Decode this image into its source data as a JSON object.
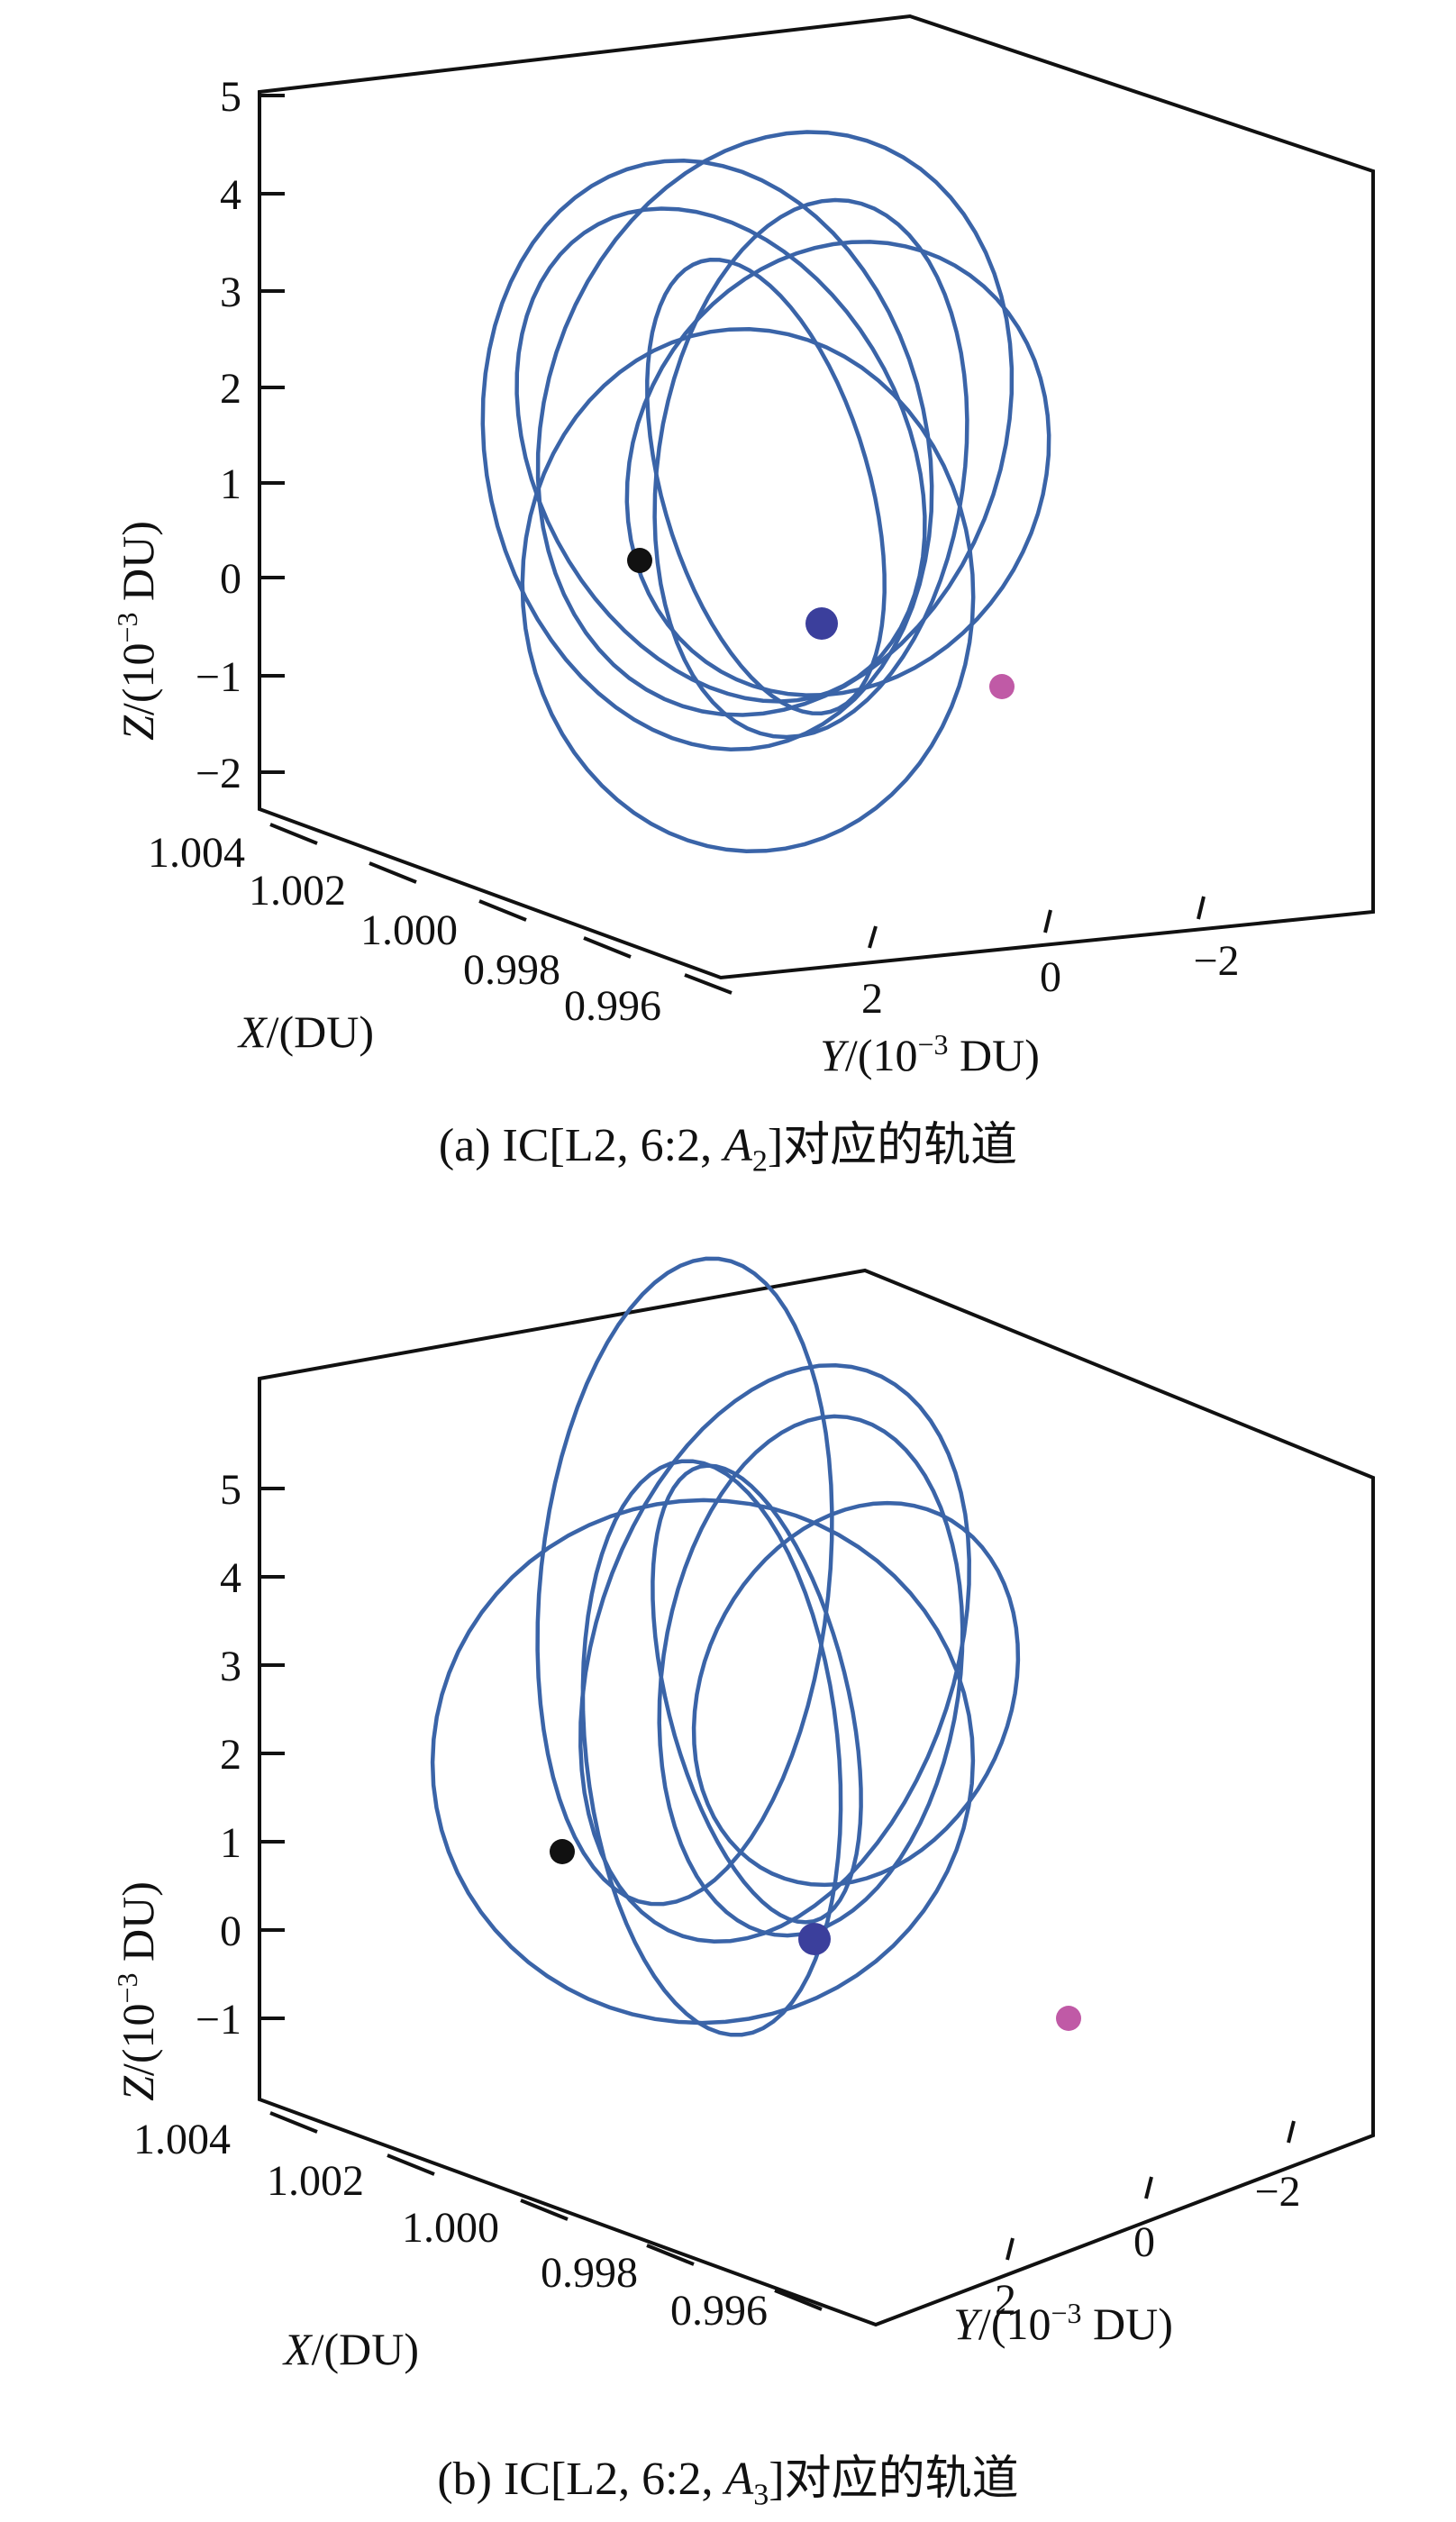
{
  "chart_data": [
    {
      "type": "line3d",
      "caption": {
        "prefix": "(a) IC[L2, 6:2, ",
        "var": "A",
        "sub": "2",
        "suffix": "]对应的轨道"
      },
      "zlabel": {
        "var": "Z",
        "rest": "/(10",
        "exp": "−3",
        "tail": " DU)"
      },
      "xlabel": {
        "var": "X",
        "rest": "/(DU)"
      },
      "ylabel": {
        "var": "Y",
        "rest": "/(10",
        "exp": "−3",
        "tail": " DU)"
      },
      "z_ticks": [
        "5",
        "4",
        "3",
        "2",
        "1",
        "0",
        "−1",
        "−2"
      ],
      "x_ticks": [
        "1.004",
        "1.002",
        "1.000",
        "0.998",
        "0.996"
      ],
      "y_ticks": [
        "2",
        "0",
        "−2"
      ],
      "series_color": "#3a64a8",
      "markers": [
        {
          "name": "start",
          "color": "#111111"
        },
        {
          "name": "center",
          "color": "#3b3f9c"
        },
        {
          "name": "offset",
          "color": "#c05aa6"
        }
      ]
    },
    {
      "type": "line3d",
      "caption": {
        "prefix": "(b) IC[L2, 6:2, ",
        "var": "A",
        "sub": "3",
        "suffix": "]对应的轨道"
      },
      "zlabel": {
        "var": "Z",
        "rest": "/(10",
        "exp": "−3",
        "tail": " DU)"
      },
      "xlabel": {
        "var": "X",
        "rest": "/(DU)"
      },
      "ylabel": {
        "var": "Y",
        "rest": "/(10",
        "exp": "−3",
        "tail": " DU)"
      },
      "z_ticks": [
        "5",
        "4",
        "3",
        "2",
        "1",
        "0",
        "−1"
      ],
      "x_ticks": [
        "1.004",
        "1.002",
        "1.000",
        "0.998",
        "0.996"
      ],
      "y_ticks": [
        "2",
        "0",
        "−2"
      ],
      "series_color": "#3a64a8",
      "markers": [
        {
          "name": "start",
          "color": "#111111"
        },
        {
          "name": "center",
          "color": "#3b3f9c"
        },
        {
          "name": "offset",
          "color": "#c05aa6"
        }
      ]
    }
  ]
}
